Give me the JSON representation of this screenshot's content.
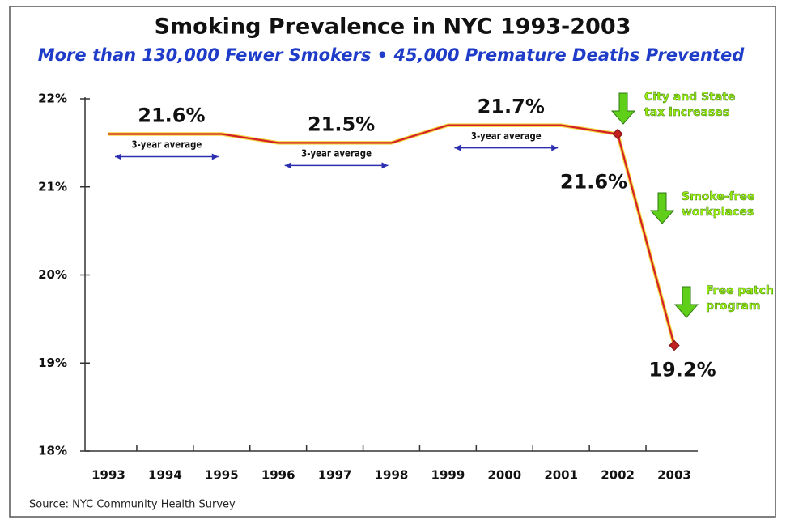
{
  "chart_data": {
    "type": "line",
    "title": "Smoking Prevalence in NYC 1993-2003",
    "subtitle": "More than 130,000 Fewer Smokers • 45,000 Premature Deaths Prevented",
    "categories": [
      "1993",
      "1994",
      "1995",
      "1996",
      "1997",
      "1998",
      "1999",
      "2000",
      "2001",
      "2002",
      "2003"
    ],
    "series": [
      {
        "color": "#d42027",
        "values": [
          21.6,
          21.6,
          21.6,
          21.5,
          21.5,
          21.5,
          21.7,
          21.7,
          21.7,
          21.6,
          19.2
        ],
        "value_labels": [
          null,
          null,
          null,
          null,
          null,
          null,
          null,
          null,
          null,
          "21.6%",
          "19.2%"
        ]
      }
    ],
    "averages": [
      {
        "text": "3-year average",
        "value": 21.6,
        "label": "21.6%",
        "from": "1993",
        "to": "1995"
      },
      {
        "text": "3-year average",
        "value": 21.5,
        "label": "21.5%",
        "from": "1996",
        "to": "1998"
      },
      {
        "text": "3-year average",
        "value": 21.7,
        "label": "21.7%",
        "from": "1999",
        "to": "2001"
      }
    ],
    "annotations": [
      {
        "lines": [
          "City and State",
          "tax increases"
        ]
      },
      {
        "lines": [
          "Smoke-free",
          "workplaces"
        ]
      },
      {
        "lines": [
          "Free patch",
          "program"
        ]
      }
    ],
    "ylim": [
      18,
      22
    ],
    "yticks": [
      {
        "value": 18,
        "label": "18%"
      },
      {
        "value": 19,
        "label": "19%"
      },
      {
        "value": 20,
        "label": "20%"
      },
      {
        "value": 21,
        "label": "21%"
      },
      {
        "value": 22,
        "label": "22%"
      }
    ],
    "source": "Source: NYC Community Health Survey"
  }
}
